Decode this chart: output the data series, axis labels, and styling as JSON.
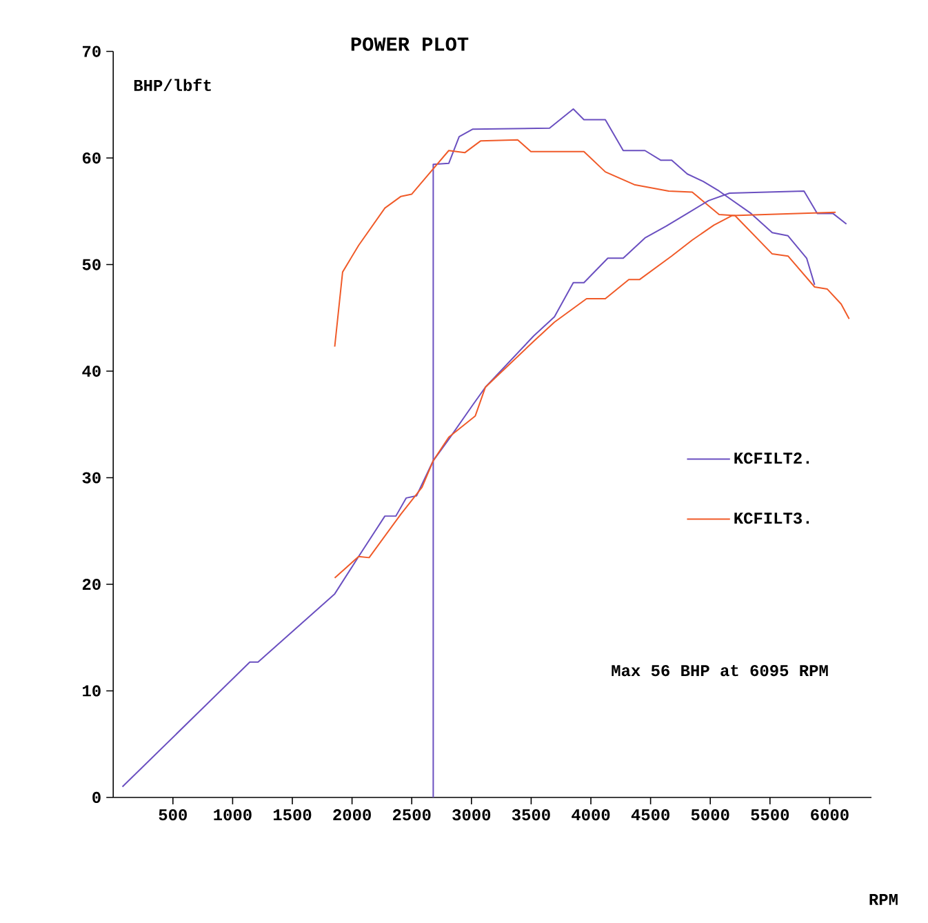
{
  "chart_data": {
    "type": "line",
    "title": "POWER PLOT",
    "xlabel": "RPM",
    "ylabel": "BHP/lbft",
    "annotations": [
      "Max 56 BHP at 6095 RPM"
    ],
    "xlim": [
      0,
      6350
    ],
    "ylim": [
      0,
      70
    ],
    "xticks": [
      500,
      1000,
      1500,
      2000,
      2500,
      3000,
      3500,
      4000,
      4500,
      5000,
      5500,
      6000
    ],
    "yticks": [
      0,
      10,
      20,
      30,
      40,
      50,
      60,
      70
    ],
    "grid": false,
    "legend": "right",
    "marker": "none",
    "line_style": "solid",
    "series": [
      {
        "name": "KCFILT2.",
        "color": "#6a4fc0",
        "x": [
          2680,
          2680,
          2810,
          2897,
          3009,
          3654,
          3853,
          3942,
          4121,
          4271,
          4453,
          4584,
          4677,
          4808,
          4942,
          5074,
          5341,
          5519,
          5651,
          5807,
          5874
        ],
        "values": [
          0,
          59.4,
          59.5,
          62.0,
          62.7,
          62.8,
          64.6,
          63.6,
          63.6,
          60.7,
          60.7,
          59.8,
          59.8,
          58.5,
          57.8,
          56.9,
          54.8,
          53.0,
          52.7,
          50.6,
          48.1
        ]
      },
      {
        "name": "KCFILT3.",
        "color": "#f05a28",
        "x": [
          1855,
          1921,
          2055,
          2275,
          2410,
          2499,
          2810,
          2944,
          3076,
          3387,
          3498,
          3942,
          4121,
          4364,
          4652,
          4849,
          5074,
          5207,
          5519,
          5651,
          5874,
          5980,
          6096,
          6163
        ],
        "values": [
          42.3,
          49.3,
          51.8,
          55.3,
          56.4,
          56.6,
          60.7,
          60.5,
          61.6,
          61.7,
          60.6,
          60.6,
          58.7,
          57.5,
          56.9,
          56.8,
          54.7,
          54.6,
          51.0,
          50.8,
          47.9,
          47.7,
          46.3,
          44.9
        ]
      },
      {
        "color": "#6a4fc0",
        "x": [
          77,
          1144,
          1213,
          1855,
          2055,
          2275,
          2367,
          2454,
          2540,
          2680,
          2810,
          3009,
          3117,
          3521,
          3695,
          3853,
          3942,
          4142,
          4271,
          4453,
          4630,
          4808,
          4985,
          5161,
          5785,
          5896,
          6027,
          6140
        ],
        "values": [
          1.0,
          12.7,
          12.7,
          19.1,
          22.6,
          26.4,
          26.4,
          28.1,
          28.3,
          31.6,
          33.6,
          36.8,
          38.5,
          43.3,
          45.1,
          48.3,
          48.3,
          50.6,
          50.6,
          52.5,
          53.6,
          54.8,
          56.0,
          56.7,
          56.9,
          54.8,
          54.8,
          53.8
        ]
      },
      {
        "color": "#f05a28",
        "x": [
          1855,
          2055,
          2143,
          2410,
          2586,
          2680,
          2810,
          3032,
          3117,
          3521,
          3695,
          3964,
          4121,
          4318,
          4409,
          4676,
          4849,
          5030,
          5184,
          6050
        ],
        "values": [
          20.6,
          22.6,
          22.5,
          26.6,
          29.1,
          31.6,
          33.8,
          35.8,
          38.5,
          42.8,
          44.6,
          46.8,
          46.8,
          48.6,
          48.6,
          50.8,
          52.3,
          53.7,
          54.6,
          54.9
        ]
      }
    ]
  }
}
